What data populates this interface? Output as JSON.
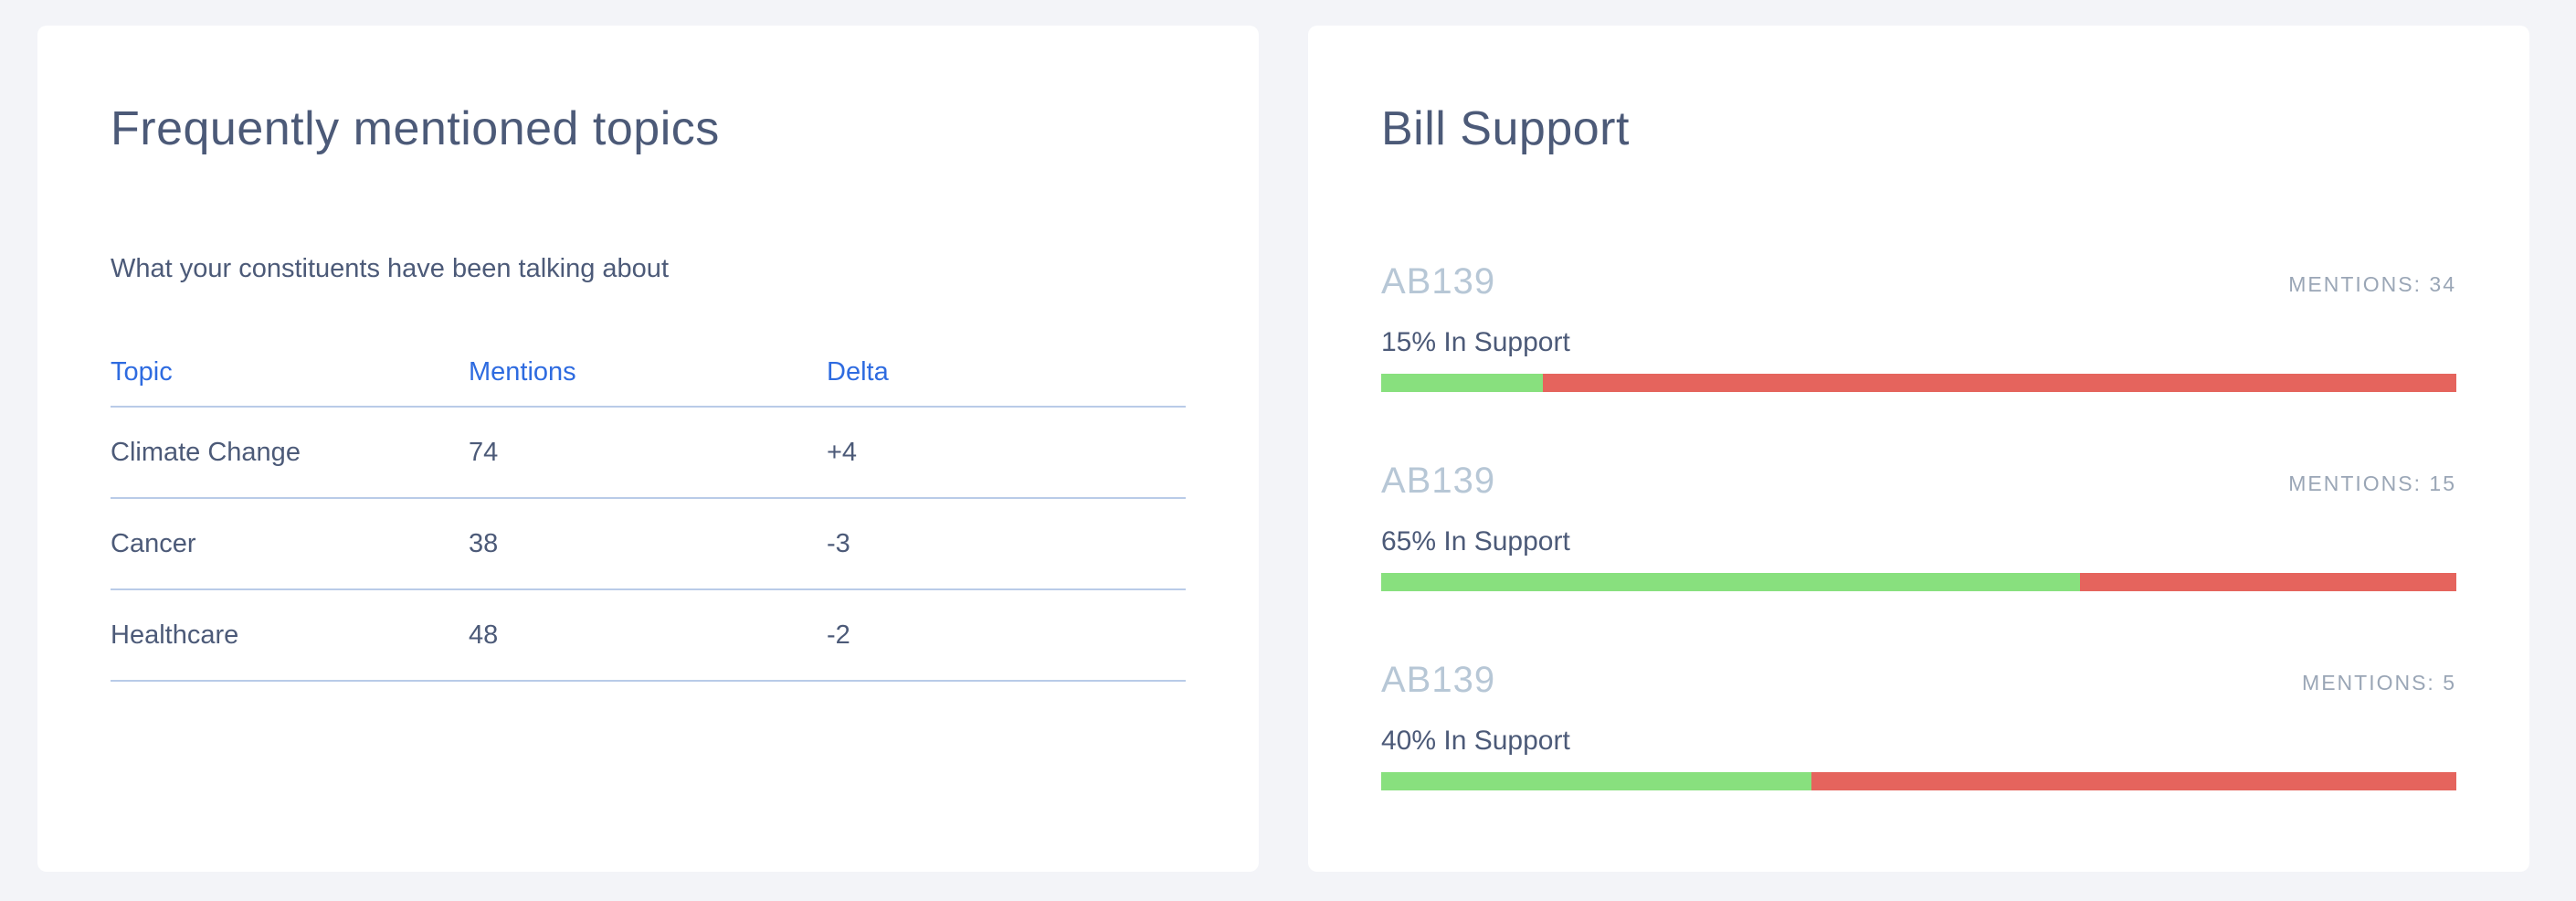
{
  "colors": {
    "background": "#f3f4f8",
    "card": "#ffffff",
    "title": "#4c5a78",
    "header": "#2e6be0",
    "divider": "#b9cbe8",
    "bill_id": "#b7c7d6",
    "support": "#88e07e",
    "oppose": "#e5645d"
  },
  "topics": {
    "title": "Frequently mentioned topics",
    "subtitle": "What your constituents have been talking about",
    "columns": [
      "Topic",
      "Mentions",
      "Delta"
    ],
    "rows": [
      {
        "topic": "Climate Change",
        "mentions": "74",
        "delta": "+4"
      },
      {
        "topic": "Cancer",
        "mentions": "38",
        "delta": "-3"
      },
      {
        "topic": "Healthcare",
        "mentions": "48",
        "delta": "-2"
      }
    ]
  },
  "bills": {
    "title": "Bill Support",
    "items": [
      {
        "id": "AB139",
        "mentions": "MENTIONS: 34",
        "support_label": "15% In Support",
        "support_fraction": 0.15
      },
      {
        "id": "AB139",
        "mentions": "MENTIONS: 15",
        "support_label": "65% In Support",
        "support_fraction": 0.65
      },
      {
        "id": "AB139",
        "mentions": "MENTIONS: 5",
        "support_label": "40% In Support",
        "support_fraction": 0.4
      }
    ]
  }
}
